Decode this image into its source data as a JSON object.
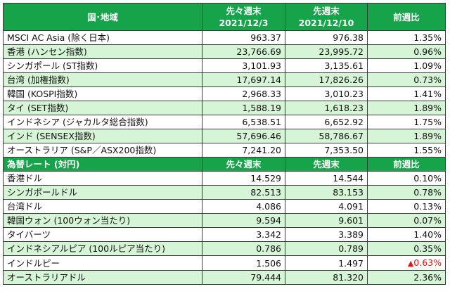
{
  "section1": {
    "header": {
      "name": "国･地域",
      "prev_label": "先々週末",
      "prev_date": "2021/12/3",
      "cur_label": "先週末",
      "cur_date": "2021/12/10",
      "change": "前週比"
    },
    "rows": [
      {
        "name": "MSCI AC Asia (除く日本)",
        "prev": "963.37",
        "cur": "976.38",
        "change": "1.35%"
      },
      {
        "name": "香港 (ハンセン指数)",
        "prev": "23,766.69",
        "cur": "23,995.72",
        "change": "0.96%"
      },
      {
        "name": "シンガポール (ST指数)",
        "prev": "3,101.93",
        "cur": "3,135.61",
        "change": "1.09%"
      },
      {
        "name": "台湾 (加権指数)",
        "prev": "17,697.14",
        "cur": "17,826.26",
        "change": "0.73%"
      },
      {
        "name": "韓国 (KOSPI指数)",
        "prev": "2,968.33",
        "cur": "3,010.23",
        "change": "1.41%"
      },
      {
        "name": "タイ (SET指数)",
        "prev": "1,588.19",
        "cur": "1,618.23",
        "change": "1.89%"
      },
      {
        "name": "インドネシア (ジャカルタ総合指数)",
        "prev": "6,538.51",
        "cur": "6,652.92",
        "change": "1.75%"
      },
      {
        "name": "インド (SENSEX指数)",
        "prev": "57,696.46",
        "cur": "58,786.67",
        "change": "1.89%"
      },
      {
        "name": "オーストラリア (S&P／ASX200指数)",
        "prev": "7,241.20",
        "cur": "7,353.50",
        "change": "1.55%"
      }
    ]
  },
  "section2": {
    "header": {
      "name": "為替レート (対円)",
      "prev_label": "先々週末",
      "cur_label": "先週末",
      "change": "前週比"
    },
    "rows": [
      {
        "name": "香港ドル",
        "prev": "14.529",
        "cur": "14.544",
        "change": "0.10%"
      },
      {
        "name": "シンガポールドル",
        "prev": "82.513",
        "cur": "83.153",
        "change": "0.78%"
      },
      {
        "name": "台湾ドル",
        "prev": "4.086",
        "cur": "4.091",
        "change": "0.13%"
      },
      {
        "name": "韓国ウォン (100ウォン当たり)",
        "prev": "9.594",
        "cur": "9.601",
        "change": "0.07%"
      },
      {
        "name": "タイバーツ",
        "prev": "3.342",
        "cur": "3.389",
        "change": "1.40%"
      },
      {
        "name": "インドネシアルピア (100ルピア当たり)",
        "prev": "0.786",
        "cur": "0.789",
        "change": "0.35%"
      },
      {
        "name": "インドルピー",
        "prev": "1.506",
        "cur": "1.497",
        "change": "0.63%",
        "negative_marker": "▲"
      },
      {
        "name": "オーストラリアドル",
        "prev": "79.444",
        "cur": "81.320",
        "change": "2.36%"
      }
    ]
  },
  "colors": {
    "header_bg": "#16a34a",
    "alt_row_bg": "#d6f5d6",
    "negative": "#e11111"
  }
}
